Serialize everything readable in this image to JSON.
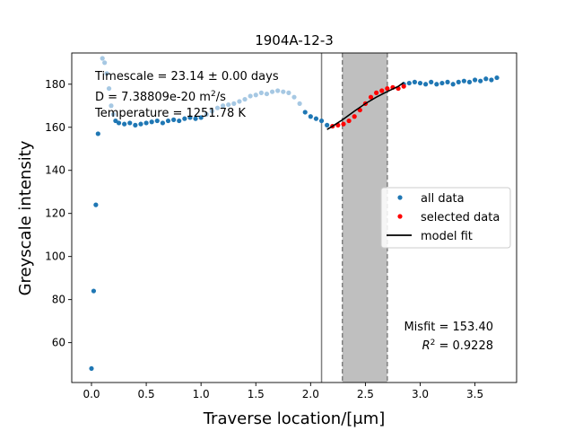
{
  "chart_data": {
    "type": "scatter",
    "title": "1904A-12-3",
    "xlabel": "Traverse location/[μm]",
    "ylabel": "Greyscale intensity",
    "xlim": [
      -0.18,
      3.88
    ],
    "ylim": [
      41.5,
      194.5
    ],
    "xticks": [
      "0.0",
      "0.5",
      "1.0",
      "1.5",
      "2.0",
      "2.5",
      "3.0",
      "3.5"
    ],
    "yticks": [
      "60",
      "80",
      "100",
      "120",
      "140",
      "160",
      "180"
    ],
    "grid": false,
    "legend_position": "center-right",
    "legend": [
      {
        "label": "all data",
        "marker": "dot",
        "color": "#1f77b4"
      },
      {
        "label": "selected data",
        "marker": "dot",
        "color": "#ff0000"
      },
      {
        "label": "model fit",
        "marker": "line",
        "color": "#000000"
      }
    ],
    "annotations": {
      "timescale": "Timescale = 23.14 ± 0.00 days",
      "diffusivity_prefix": "D = 7.38809e-20 m",
      "diffusivity_sup": "2",
      "diffusivity_suffix": "/s",
      "temperature": "Temperature = 1251.78 K",
      "misfit": "Misfit = 153.40",
      "r2_symbol": "R",
      "r2_sup": "2",
      "r2_value": " = 0.9228"
    },
    "vertical_line_x": 2.1,
    "shaded_region": {
      "x_start": 2.29,
      "x_end": 2.7,
      "color": "#bfbfbf"
    },
    "series": [
      {
        "name": "all data",
        "color": "#1f77b4",
        "points": [
          [
            0.0,
            48
          ],
          [
            0.02,
            84
          ],
          [
            0.04,
            124
          ],
          [
            0.06,
            157
          ],
          [
            0.1,
            192
          ],
          [
            0.12,
            190
          ],
          [
            0.14,
            185
          ],
          [
            0.16,
            178
          ],
          [
            0.18,
            170
          ],
          [
            0.2,
            166
          ],
          [
            0.22,
            163
          ],
          [
            0.25,
            162
          ],
          [
            0.3,
            161.5
          ],
          [
            0.35,
            162
          ],
          [
            0.4,
            161
          ],
          [
            0.45,
            161.5
          ],
          [
            0.5,
            162
          ],
          [
            0.55,
            162.5
          ],
          [
            0.6,
            163
          ],
          [
            0.65,
            162
          ],
          [
            0.7,
            163
          ],
          [
            0.75,
            163.5
          ],
          [
            0.8,
            163
          ],
          [
            0.85,
            164
          ],
          [
            0.9,
            164.5
          ],
          [
            0.95,
            164
          ],
          [
            1.0,
            164.5
          ],
          [
            1.05,
            166
          ],
          [
            1.1,
            167.5
          ],
          [
            1.15,
            169
          ],
          [
            1.2,
            170
          ],
          [
            1.25,
            170.5
          ],
          [
            1.3,
            171
          ],
          [
            1.35,
            172
          ],
          [
            1.4,
            173
          ],
          [
            1.45,
            174.5
          ],
          [
            1.5,
            175
          ],
          [
            1.55,
            176
          ],
          [
            1.6,
            175.5
          ],
          [
            1.65,
            176.5
          ],
          [
            1.7,
            177
          ],
          [
            1.75,
            176.5
          ],
          [
            1.8,
            176
          ],
          [
            1.85,
            174
          ],
          [
            1.9,
            171
          ],
          [
            1.95,
            167
          ],
          [
            2.0,
            165
          ],
          [
            2.05,
            164
          ],
          [
            2.1,
            163
          ],
          [
            2.15,
            161
          ],
          [
            2.85,
            180
          ],
          [
            2.9,
            180.5
          ],
          [
            2.95,
            181
          ],
          [
            3.0,
            180.5
          ],
          [
            3.05,
            180
          ],
          [
            3.1,
            181
          ],
          [
            3.15,
            180
          ],
          [
            3.2,
            180.5
          ],
          [
            3.25,
            181
          ],
          [
            3.3,
            180
          ],
          [
            3.35,
            181
          ],
          [
            3.4,
            181.5
          ],
          [
            3.45,
            181
          ],
          [
            3.5,
            182
          ],
          [
            3.55,
            181.5
          ],
          [
            3.6,
            182.5
          ],
          [
            3.65,
            182
          ],
          [
            3.7,
            183
          ]
        ]
      },
      {
        "name": "selected data",
        "color": "#ff0000",
        "points": [
          [
            2.2,
            160.5
          ],
          [
            2.25,
            161
          ],
          [
            2.3,
            161.5
          ],
          [
            2.35,
            163
          ],
          [
            2.4,
            165
          ],
          [
            2.45,
            168
          ],
          [
            2.5,
            171
          ],
          [
            2.55,
            174
          ],
          [
            2.6,
            176
          ],
          [
            2.65,
            177
          ],
          [
            2.7,
            178
          ],
          [
            2.75,
            178.5
          ],
          [
            2.8,
            178
          ],
          [
            2.85,
            179
          ]
        ]
      },
      {
        "name": "model fit",
        "color": "#000000",
        "points": [
          [
            2.15,
            159
          ],
          [
            2.2,
            160.5
          ],
          [
            2.3,
            163.8
          ],
          [
            2.4,
            167.5
          ],
          [
            2.5,
            171
          ],
          [
            2.6,
            174
          ],
          [
            2.7,
            176.6
          ],
          [
            2.8,
            179
          ],
          [
            2.85,
            180.8
          ]
        ]
      }
    ]
  }
}
